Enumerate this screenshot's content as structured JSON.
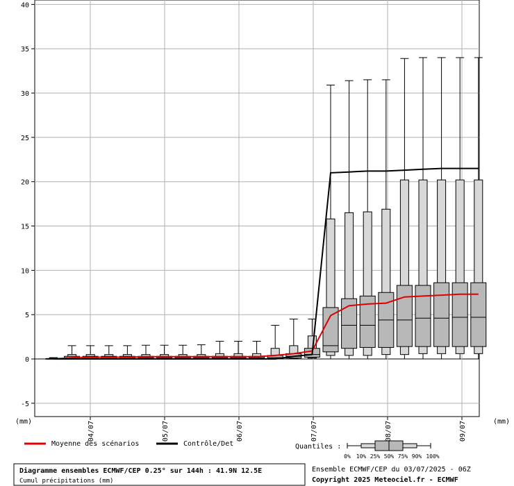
{
  "chart_data": {
    "type": "box",
    "title": "Diagramme ensembles ECMWF/CEP 0.25° sur 144h : 41.9N 12.5E",
    "subtitle": "Cumul précipitations (mm)",
    "run_info": "Ensemble ECMWF/CEP du 03/07/2025 - 06Z",
    "copyright": "Copyright 2025 Meteociel.fr - ECMWF",
    "y_unit_left": "(mm)",
    "y_unit_right": "(mm)",
    "ylim": [
      -6.5,
      40.5
    ],
    "y_ticks": [
      -5,
      0,
      5,
      10,
      15,
      20,
      25,
      30,
      35,
      40
    ],
    "x_tick_labels": [
      "04/07",
      "05/07",
      "06/07",
      "07/07",
      "08/07",
      "09/07"
    ],
    "grid": true,
    "legend": [
      {
        "label": "Moyenne des scénarios",
        "color": "#e00000"
      },
      {
        "label": "Contrôle/Det",
        "color": "#000000"
      }
    ],
    "quantiles_label": "Quantiles :",
    "quantile_labels": [
      "0%",
      "10%",
      "25%",
      "50%",
      "75%",
      "90%",
      "100%"
    ],
    "boxes": [
      {
        "min": 0,
        "q10": 0,
        "q25": 0,
        "median": 0,
        "q75": 0.05,
        "q90": 0.1,
        "max": 0.15
      },
      {
        "min": 0,
        "q10": 0,
        "q25": 0.05,
        "median": 0.15,
        "q75": 0.3,
        "q90": 0.5,
        "max": 1.5
      },
      {
        "min": 0,
        "q10": 0,
        "q25": 0.05,
        "median": 0.15,
        "q75": 0.3,
        "q90": 0.5,
        "max": 1.5
      },
      {
        "min": 0,
        "q10": 0,
        "q25": 0.05,
        "median": 0.15,
        "q75": 0.3,
        "q90": 0.5,
        "max": 1.5
      },
      {
        "min": 0,
        "q10": 0,
        "q25": 0.05,
        "median": 0.15,
        "q75": 0.3,
        "q90": 0.5,
        "max": 1.5
      },
      {
        "min": 0,
        "q10": 0,
        "q25": 0.05,
        "median": 0.15,
        "q75": 0.3,
        "q90": 0.5,
        "max": 1.55
      },
      {
        "min": 0,
        "q10": 0,
        "q25": 0.05,
        "median": 0.15,
        "q75": 0.3,
        "q90": 0.5,
        "max": 1.55
      },
      {
        "min": 0,
        "q10": 0,
        "q25": 0.05,
        "median": 0.15,
        "q75": 0.3,
        "q90": 0.5,
        "max": 1.55
      },
      {
        "min": 0,
        "q10": 0,
        "q25": 0.05,
        "median": 0.15,
        "q75": 0.3,
        "q90": 0.5,
        "max": 1.6
      },
      {
        "min": 0,
        "q10": 0,
        "q25": 0.05,
        "median": 0.15,
        "q75": 0.3,
        "q90": 0.6,
        "max": 2.0
      },
      {
        "min": 0,
        "q10": 0,
        "q25": 0.05,
        "median": 0.15,
        "q75": 0.3,
        "q90": 0.6,
        "max": 2.0
      },
      {
        "min": 0,
        "q10": 0,
        "q25": 0.05,
        "median": 0.15,
        "q75": 0.3,
        "q90": 0.6,
        "max": 2.0
      },
      {
        "min": 0,
        "q10": 0,
        "q25": 0.05,
        "median": 0.15,
        "q75": 0.4,
        "q90": 1.2,
        "max": 3.8
      },
      {
        "min": 0,
        "q10": 0.05,
        "q25": 0.1,
        "median": 0.3,
        "q75": 0.6,
        "q90": 1.5,
        "max": 4.5
      },
      {
        "min": 0,
        "q10": 0.1,
        "q25": 0.2,
        "median": 0.5,
        "q75": 1.2,
        "q90": 2.6,
        "max": 4.5
      },
      {
        "min": 0,
        "q10": 0.4,
        "q25": 0.8,
        "median": 1.5,
        "q75": 5.8,
        "q90": 15.8,
        "max": 30.9
      },
      {
        "min": 0,
        "q10": 0.4,
        "q25": 1.2,
        "median": 3.8,
        "q75": 6.8,
        "q90": 16.5,
        "max": 31.4
      },
      {
        "min": 0,
        "q10": 0.4,
        "q25": 1.3,
        "median": 3.8,
        "q75": 7.1,
        "q90": 16.6,
        "max": 31.5
      },
      {
        "min": 0,
        "q10": 0.5,
        "q25": 1.3,
        "median": 4.4,
        "q75": 7.5,
        "q90": 16.9,
        "max": 31.5
      },
      {
        "min": 0,
        "q10": 0.5,
        "q25": 1.4,
        "median": 4.4,
        "q75": 8.3,
        "q90": 20.2,
        "max": 33.9
      },
      {
        "min": 0,
        "q10": 0.6,
        "q25": 1.4,
        "median": 4.6,
        "q75": 8.3,
        "q90": 20.2,
        "max": 34.0
      },
      {
        "min": 0,
        "q10": 0.6,
        "q25": 1.4,
        "median": 4.6,
        "q75": 8.6,
        "q90": 20.2,
        "max": 34.0
      },
      {
        "min": 0,
        "q10": 0.6,
        "q25": 1.4,
        "median": 4.7,
        "q75": 8.6,
        "q90": 20.2,
        "max": 34.0
      },
      {
        "min": 0,
        "q10": 0.6,
        "q25": 1.4,
        "median": 4.7,
        "q75": 8.6,
        "q90": 20.2,
        "max": 34.0
      }
    ],
    "series": [
      {
        "name": "Moyenne des scénarios",
        "color": "#e00000",
        "values": [
          0,
          0.15,
          0.2,
          0.2,
          0.2,
          0.25,
          0.25,
          0.25,
          0.25,
          0.25,
          0.25,
          0.25,
          0.4,
          0.6,
          0.9,
          4.9,
          6.0,
          6.2,
          6.3,
          7.0,
          7.1,
          7.2,
          7.3,
          7.3
        ]
      },
      {
        "name": "Contrôle/Det",
        "color": "#000000",
        "values": [
          0,
          0,
          0,
          0,
          0,
          0,
          0,
          0,
          0,
          0,
          0,
          0,
          0,
          0.3,
          0.5,
          21.0,
          21.1,
          21.2,
          21.2,
          21.3,
          21.4,
          21.5,
          21.5,
          21.5
        ]
      }
    ]
  }
}
